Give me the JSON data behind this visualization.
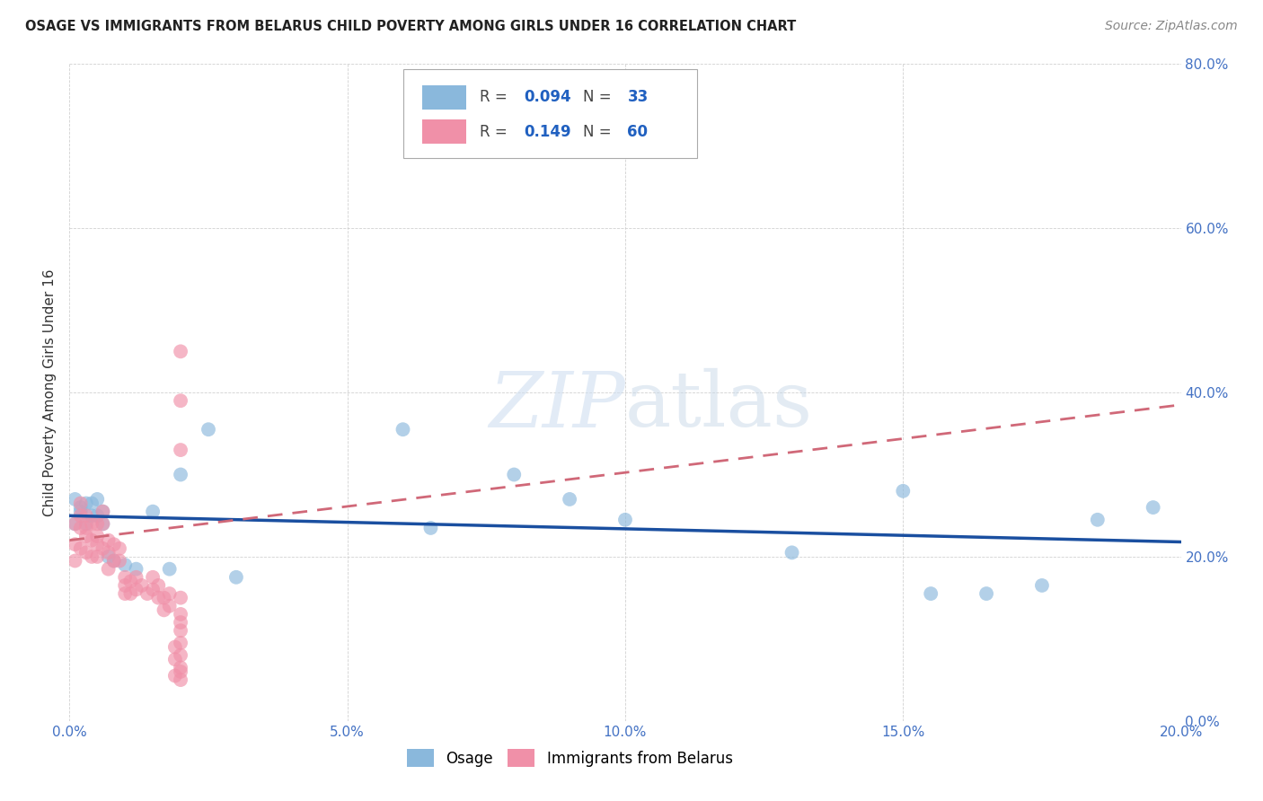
{
  "title": "OSAGE VS IMMIGRANTS FROM BELARUS CHILD POVERTY AMONG GIRLS UNDER 16 CORRELATION CHART",
  "source": "Source: ZipAtlas.com",
  "ylabel": "Child Poverty Among Girls Under 16",
  "xlim": [
    0,
    0.2
  ],
  "ylim": [
    0,
    0.8
  ],
  "xticks": [
    0.0,
    0.05,
    0.1,
    0.15,
    0.2
  ],
  "yticks": [
    0.0,
    0.2,
    0.4,
    0.6,
    0.8
  ],
  "background_color": "#ffffff",
  "osage_color": "#8ab8dc",
  "belarus_color": "#f090a8",
  "trend_osage_color": "#1a4fa0",
  "trend_belarus_color": "#d06878",
  "osage_x": [
    0.001,
    0.001,
    0.002,
    0.002,
    0.003,
    0.003,
    0.004,
    0.004,
    0.005,
    0.005,
    0.006,
    0.006,
    0.007,
    0.008,
    0.01,
    0.012,
    0.015,
    0.018,
    0.02,
    0.025,
    0.03,
    0.06,
    0.065,
    0.08,
    0.09,
    0.1,
    0.13,
    0.15,
    0.155,
    0.165,
    0.175,
    0.185,
    0.195
  ],
  "osage_y": [
    0.27,
    0.24,
    0.26,
    0.255,
    0.265,
    0.24,
    0.25,
    0.265,
    0.25,
    0.27,
    0.24,
    0.255,
    0.2,
    0.195,
    0.19,
    0.185,
    0.255,
    0.185,
    0.3,
    0.355,
    0.175,
    0.355,
    0.235,
    0.3,
    0.27,
    0.245,
    0.205,
    0.28,
    0.155,
    0.155,
    0.165,
    0.245,
    0.26
  ],
  "belarus_x": [
    0.001,
    0.001,
    0.001,
    0.002,
    0.002,
    0.002,
    0.002,
    0.003,
    0.003,
    0.003,
    0.003,
    0.004,
    0.004,
    0.004,
    0.005,
    0.005,
    0.005,
    0.005,
    0.006,
    0.006,
    0.006,
    0.007,
    0.007,
    0.007,
    0.008,
    0.008,
    0.009,
    0.009,
    0.01,
    0.01,
    0.01,
    0.011,
    0.011,
    0.012,
    0.012,
    0.013,
    0.014,
    0.015,
    0.015,
    0.016,
    0.016,
    0.017,
    0.017,
    0.018,
    0.018,
    0.019,
    0.019,
    0.019,
    0.02,
    0.02,
    0.02,
    0.02,
    0.02,
    0.02,
    0.02,
    0.02,
    0.02,
    0.02,
    0.02,
    0.02
  ],
  "belarus_y": [
    0.24,
    0.215,
    0.195,
    0.265,
    0.25,
    0.235,
    0.21,
    0.25,
    0.235,
    0.225,
    0.205,
    0.24,
    0.22,
    0.2,
    0.24,
    0.225,
    0.215,
    0.2,
    0.255,
    0.24,
    0.21,
    0.22,
    0.205,
    0.185,
    0.215,
    0.195,
    0.21,
    0.195,
    0.175,
    0.165,
    0.155,
    0.17,
    0.155,
    0.175,
    0.16,
    0.165,
    0.155,
    0.175,
    0.16,
    0.165,
    0.15,
    0.15,
    0.135,
    0.155,
    0.14,
    0.09,
    0.075,
    0.055,
    0.45,
    0.39,
    0.33,
    0.15,
    0.13,
    0.12,
    0.11,
    0.095,
    0.08,
    0.065,
    0.06,
    0.05
  ],
  "legend_r_osage": "0.094",
  "legend_n_osage": "33",
  "legend_r_belarus": "0.149",
  "legend_n_belarus": "60"
}
